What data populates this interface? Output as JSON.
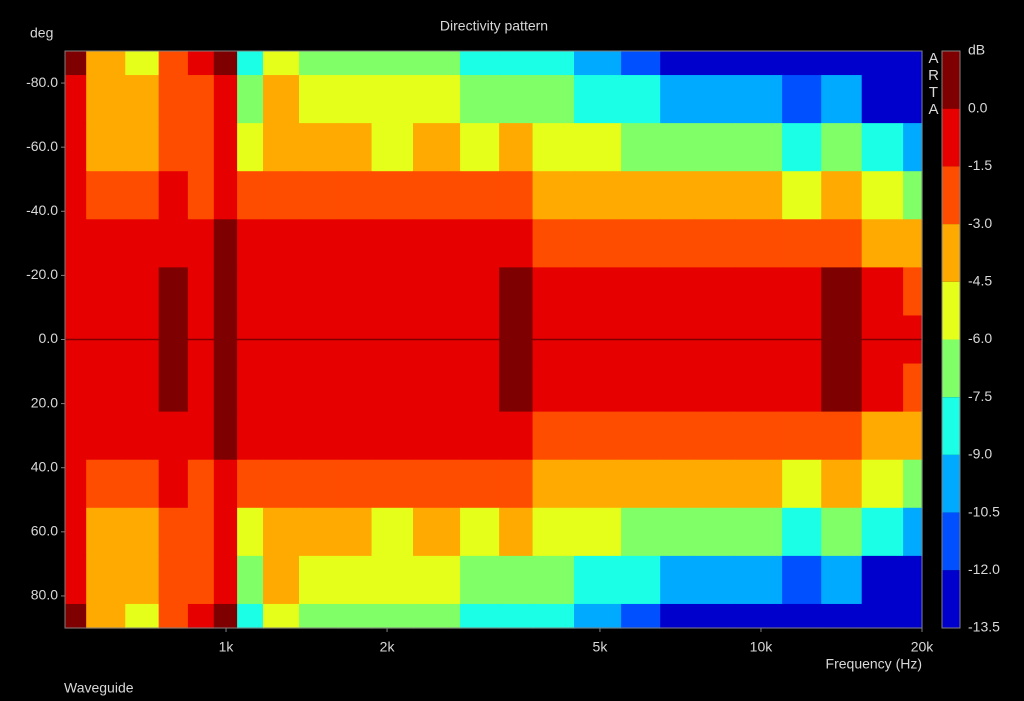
{
  "chart_data": {
    "type": "contour",
    "title": "Directivity pattern",
    "subtitle": "Waveguide",
    "x_label": "Frequency (Hz)",
    "y_label": "deg",
    "z_label": "dB",
    "watermark": "ARTA",
    "x_log": true,
    "x": [
      500,
      600,
      700,
      800,
      900,
      1000,
      1100,
      1250,
      1500,
      1750,
      2000,
      2500,
      3000,
      3500,
      4000,
      5000,
      6000,
      7000,
      8000,
      10000,
      12000,
      14000,
      17000,
      20000
    ],
    "y": [
      -90,
      -75,
      -60,
      -45,
      -30,
      -15,
      0,
      15,
      30,
      45,
      60,
      75,
      90
    ],
    "z": [
      [
        0.3,
        -4.0,
        -5.0,
        -3.0,
        -1.5,
        0.2,
        -8.0,
        -5.5,
        -6.5,
        -6.5,
        -7.0,
        -7.5,
        -8.0,
        -8.5,
        -9.0,
        -10.0,
        -11.0,
        -12.5,
        -13.5,
        -13.5,
        -13.5,
        -13.5,
        -13.5,
        -13.5
      ],
      [
        -1.0,
        -4.5,
        -4.5,
        -2.5,
        -2.5,
        -0.5,
        -7.0,
        -4.5,
        -6.0,
        -5.5,
        -6.0,
        -6.0,
        -6.5,
        -7.0,
        -7.5,
        -8.0,
        -9.0,
        -10.5,
        -10.0,
        -10.5,
        -11.0,
        -10.0,
        -12.5,
        -13.0
      ],
      [
        -1.2,
        -3.5,
        -3.5,
        -2.0,
        -2.8,
        -0.5,
        -5.0,
        -3.5,
        -4.5,
        -4.0,
        -4.7,
        -4.5,
        -5.0,
        -4.5,
        -5.0,
        -5.5,
        -6.5,
        -7.0,
        -6.5,
        -7.0,
        -8.0,
        -7.0,
        -9.0,
        -10.0
      ],
      [
        -1.0,
        -2.0,
        -2.5,
        -1.5,
        -1.8,
        -1.0,
        -3.0,
        -2.5,
        -2.8,
        -2.6,
        -3.0,
        -2.5,
        -3.0,
        -2.5,
        -3.2,
        -3.5,
        -4.0,
        -4.5,
        -4.2,
        -4.5,
        -5.0,
        -4.2,
        -6.0,
        -7.0
      ],
      [
        -0.8,
        -1.2,
        -1.2,
        -1.0,
        -1.2,
        0.1,
        -1.5,
        -1.3,
        -1.5,
        -1.4,
        -1.5,
        -1.2,
        -1.4,
        -0.5,
        -1.6,
        -1.8,
        -2.0,
        -2.3,
        -2.5,
        -2.6,
        -2.8,
        -2.0,
        -3.2,
        -4.0
      ],
      [
        -0.5,
        -0.7,
        -0.8,
        0.1,
        -0.8,
        0.3,
        -0.8,
        -0.8,
        -0.8,
        -0.9,
        -1.0,
        -0.5,
        -1.0,
        0.2,
        -0.8,
        -1.0,
        -1.0,
        -1.1,
        -1.2,
        -1.3,
        -1.2,
        0.1,
        -1.5,
        -1.8
      ],
      [
        -0.5,
        -0.5,
        -0.5,
        0.2,
        -0.5,
        0.3,
        -0.5,
        -0.5,
        -0.5,
        -0.5,
        -0.5,
        -0.3,
        -0.5,
        0.3,
        -0.5,
        -0.5,
        -0.5,
        -0.6,
        -0.6,
        -0.6,
        -0.5,
        0.2,
        -0.5,
        -0.5
      ],
      [
        -0.5,
        -0.7,
        -0.8,
        0.1,
        -0.8,
        0.3,
        -0.8,
        -0.8,
        -0.8,
        -0.9,
        -1.0,
        -0.5,
        -1.0,
        0.2,
        -0.8,
        -1.0,
        -1.0,
        -1.1,
        -1.2,
        -1.3,
        -1.2,
        0.1,
        -1.5,
        -1.8
      ],
      [
        -0.8,
        -1.2,
        -1.2,
        -1.0,
        -1.2,
        0.1,
        -1.5,
        -1.3,
        -1.5,
        -1.4,
        -1.5,
        -1.2,
        -1.4,
        -0.5,
        -1.6,
        -1.8,
        -2.0,
        -2.3,
        -2.5,
        -2.6,
        -2.8,
        -2.0,
        -3.2,
        -4.0
      ],
      [
        -1.0,
        -2.0,
        -2.5,
        -1.5,
        -1.8,
        -1.0,
        -3.0,
        -2.5,
        -2.8,
        -2.6,
        -3.0,
        -2.5,
        -3.0,
        -2.5,
        -3.2,
        -3.5,
        -4.0,
        -4.5,
        -4.2,
        -4.5,
        -5.0,
        -4.2,
        -6.0,
        -7.0
      ],
      [
        -1.2,
        -3.5,
        -3.5,
        -2.0,
        -2.8,
        -0.5,
        -5.0,
        -3.5,
        -4.5,
        -4.0,
        -4.7,
        -4.5,
        -5.0,
        -4.5,
        -5.0,
        -5.5,
        -6.5,
        -7.0,
        -6.5,
        -7.0,
        -8.0,
        -7.0,
        -9.0,
        -10.0
      ],
      [
        -1.0,
        -4.5,
        -4.5,
        -2.5,
        -2.5,
        -0.5,
        -7.0,
        -4.5,
        -6.0,
        -5.5,
        -6.0,
        -6.0,
        -6.5,
        -7.0,
        -7.5,
        -8.0,
        -9.0,
        -10.5,
        -10.0,
        -10.5,
        -11.0,
        -10.0,
        -12.5,
        -13.0
      ],
      [
        0.3,
        -4.0,
        -5.0,
        -3.0,
        -1.5,
        0.2,
        -8.0,
        -5.5,
        -6.5,
        -6.5,
        -7.0,
        -7.5,
        -8.0,
        -8.5,
        -9.0,
        -10.0,
        -11.0,
        -12.5,
        -13.5,
        -13.5,
        -13.5,
        -13.5,
        -13.5,
        -13.5
      ]
    ],
    "xlim": [
      500,
      20000
    ],
    "xticks": [
      {
        "value": 1000,
        "label": "1k"
      },
      {
        "value": 2000,
        "label": "2k"
      },
      {
        "value": 5000,
        "label": "5k"
      },
      {
        "value": 10000,
        "label": "10k"
      },
      {
        "value": 20000,
        "label": "20k"
      }
    ],
    "ylim": [
      90,
      -90
    ],
    "yticks": [
      {
        "value": -80,
        "label": "-80.0"
      },
      {
        "value": -60,
        "label": "-60.0"
      },
      {
        "value": -40,
        "label": "-40.0"
      },
      {
        "value": -20,
        "label": "-20.0"
      },
      {
        "value": 0,
        "label": "0.0"
      },
      {
        "value": 20,
        "label": "20.0"
      },
      {
        "value": 40,
        "label": "40.0"
      },
      {
        "value": 60,
        "label": "60.0"
      },
      {
        "value": 80,
        "label": "80.0"
      }
    ],
    "zlim": [
      -13.5,
      1.5
    ],
    "zticks": [
      {
        "value": 0,
        "label": "0.0"
      },
      -1.5,
      {
        "value": -3,
        "label": "-3.0"
      },
      -4.5,
      {
        "value": -6,
        "label": "-6.0"
      },
      -7.5,
      {
        "value": -9,
        "label": "-9.0"
      },
      -10.5,
      {
        "value": -12,
        "label": "-12.0"
      },
      -13.5
    ],
    "colors": [
      "#7f0000",
      "#e60000",
      "#ff4d00",
      "#ffaa00",
      "#e5ff1a",
      "#80ff66",
      "#1affe5",
      "#00aaff",
      "#0050ff",
      "#0000cc"
    ]
  }
}
